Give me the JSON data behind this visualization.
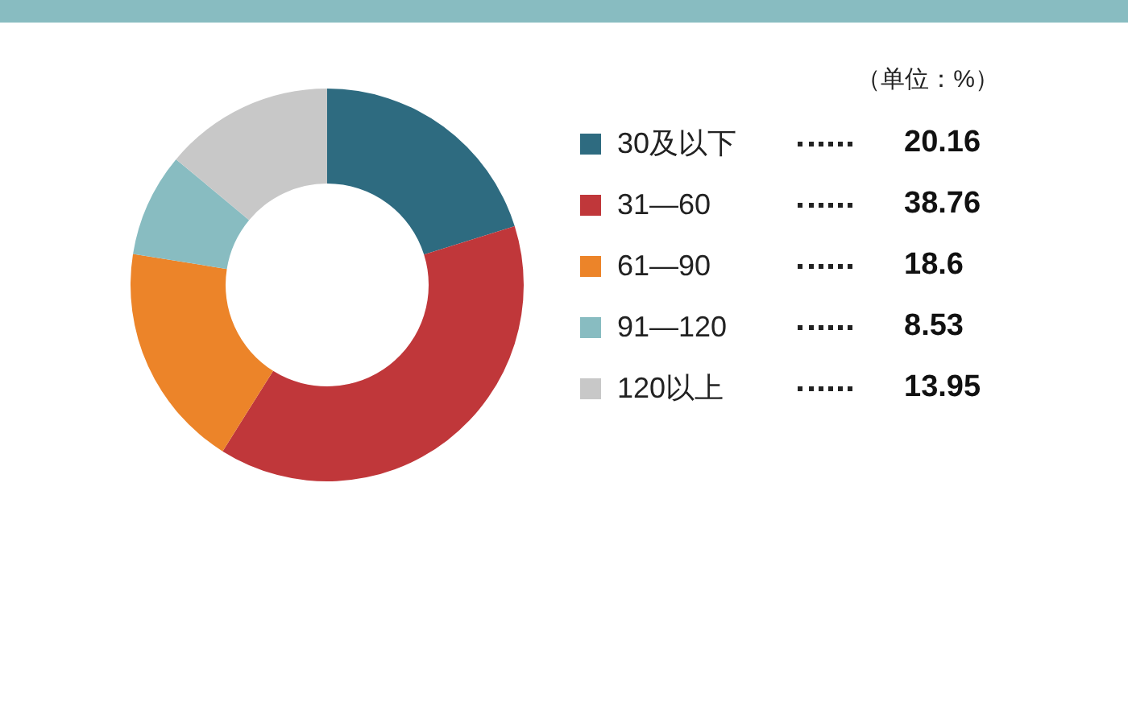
{
  "chart_data": {
    "type": "donut",
    "legend_title": "（单位：%）",
    "categories": [
      "30及以下",
      "31—60",
      "61—90",
      "91—120",
      "120以上"
    ],
    "values": [
      20.16,
      38.76,
      18.6,
      8.53,
      13.95
    ],
    "colors": [
      "#2e6b80",
      "#c0373a",
      "#ec8429",
      "#88bcc1",
      "#c8c8c8"
    ],
    "data_labels": true,
    "legend": "right"
  }
}
